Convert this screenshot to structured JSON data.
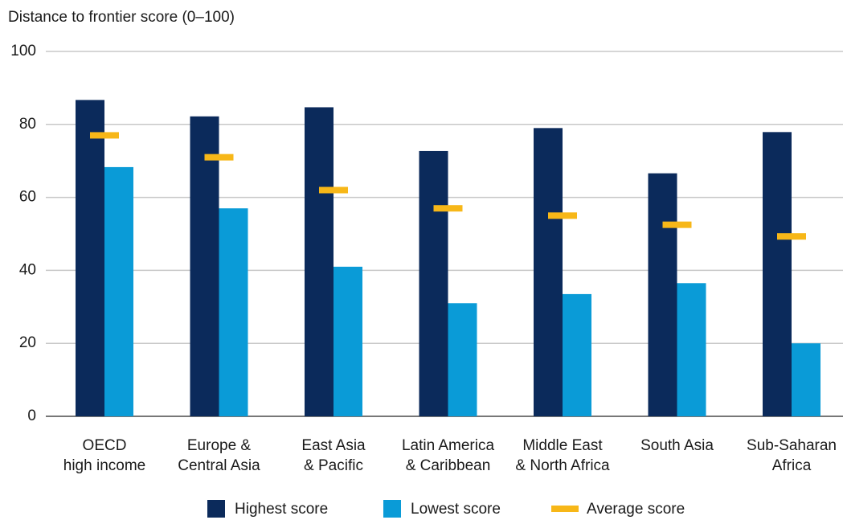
{
  "chart_data": {
    "type": "bar",
    "title": "Distance to frontier score (0–100)",
    "categories": [
      [
        "OECD",
        "high income"
      ],
      [
        "Europe &",
        "Central Asia"
      ],
      [
        "East Asia",
        "& Pacific"
      ],
      [
        "Latin America",
        "& Caribbean"
      ],
      [
        "Middle East",
        "& North Africa"
      ],
      [
        "South Asia"
      ],
      [
        "Sub-Saharan",
        "Africa"
      ]
    ],
    "series": [
      {
        "name": "Highest score",
        "color": "#0b2a5b",
        "values": [
          86.7,
          82.2,
          84.7,
          72.7,
          79,
          66.6,
          77.9
        ]
      },
      {
        "name": "Lowest score",
        "color": "#0a9bd7",
        "values": [
          68.3,
          57,
          41,
          31,
          33.5,
          36.5,
          20
        ]
      },
      {
        "name": "Average score",
        "color": "#f7b718",
        "marker": "dash",
        "values": [
          77,
          71,
          62,
          57,
          55,
          52.5,
          49.3
        ]
      }
    ],
    "ylim": [
      0,
      100
    ],
    "yticks": [
      0,
      20,
      40,
      60,
      80,
      100
    ],
    "grid": true,
    "legend": "bottom"
  }
}
